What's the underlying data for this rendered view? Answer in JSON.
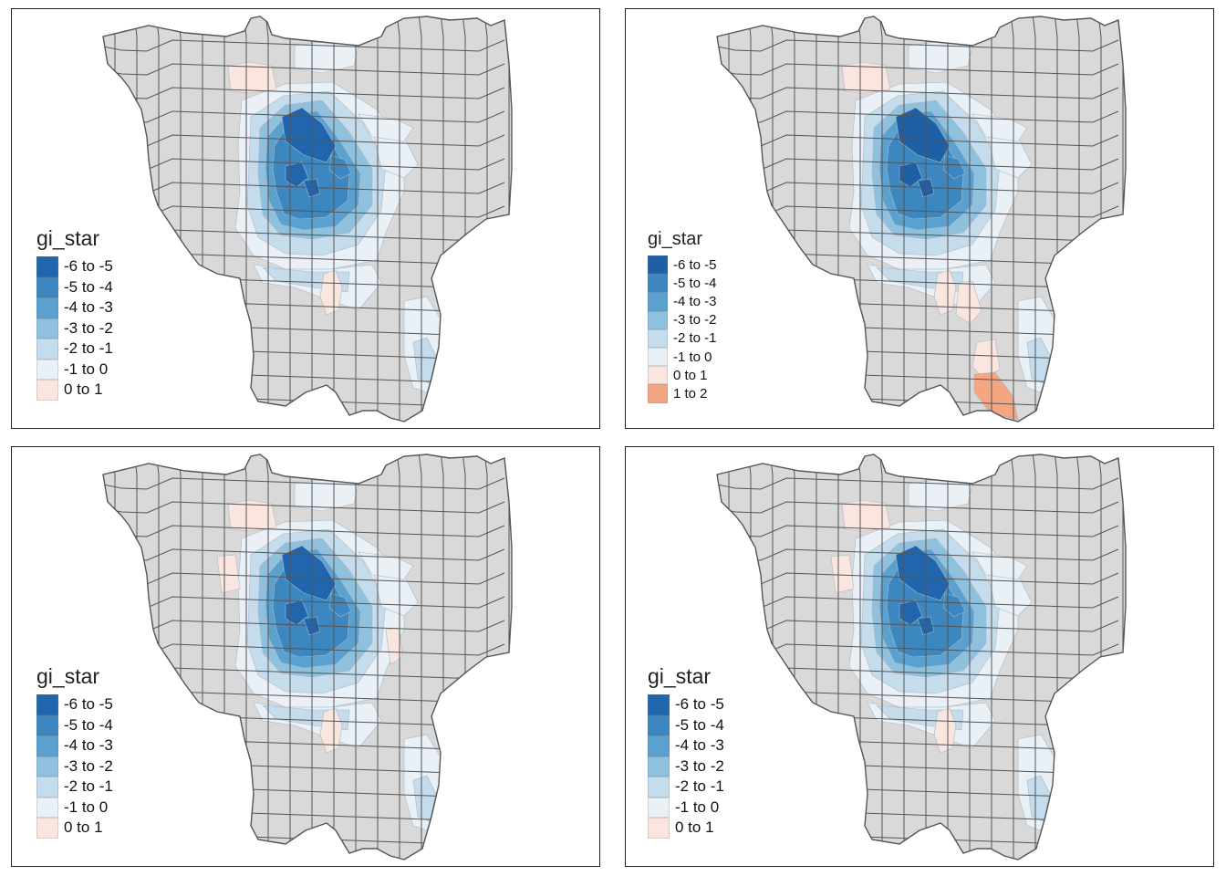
{
  "panels": [
    {
      "legend": {
        "title": "gi_star",
        "items": [
          {
            "label": "-6 to -5",
            "color": "#2166ac"
          },
          {
            "label": "-5 to -4",
            "color": "#3c87bf"
          },
          {
            "label": "-4 to -3",
            "color": "#5aa1cf"
          },
          {
            "label": "-3 to -2",
            "color": "#8fc1de"
          },
          {
            "label": "-2 to -1",
            "color": "#c5dcec"
          },
          {
            "label": "-1 to 0",
            "color": "#e9f0f6"
          },
          {
            "label": "0 to 1",
            "color": "#fbe6df"
          }
        ]
      },
      "hotspots": [
        "north-west-tract",
        "south-central-tract"
      ]
    },
    {
      "legend": {
        "title": "gi_star",
        "items": [
          {
            "label": "-6 to -5",
            "color": "#1f5fa5"
          },
          {
            "label": "-5 to -4",
            "color": "#3c87bf"
          },
          {
            "label": "-4 to -3",
            "color": "#5aa1cf"
          },
          {
            "label": "-3 to -2",
            "color": "#8fc1de"
          },
          {
            "label": "-2 to -1",
            "color": "#c5dcec"
          },
          {
            "label": "-1 to 0",
            "color": "#e9f0f6"
          },
          {
            "label": "0 to 1",
            "color": "#fbe6df"
          },
          {
            "label": "1 to 2",
            "color": "#f4a582"
          }
        ]
      },
      "hotspots": [
        "north-west-tract",
        "south-central-tract",
        "south-east-tract",
        "far-south-tract"
      ]
    },
    {
      "legend": {
        "title": "gi_star",
        "items": [
          {
            "label": "-6 to -5",
            "color": "#2166ac"
          },
          {
            "label": "-5 to -4",
            "color": "#3c87bf"
          },
          {
            "label": "-4 to -3",
            "color": "#5aa1cf"
          },
          {
            "label": "-3 to -2",
            "color": "#8fc1de"
          },
          {
            "label": "-2 to -1",
            "color": "#c5dcec"
          },
          {
            "label": "-1 to 0",
            "color": "#e9f0f6"
          },
          {
            "label": "0 to 1",
            "color": "#fbe6df"
          }
        ]
      },
      "hotspots": [
        "north-west-tract",
        "west-tract",
        "east-tract",
        "south-central-tract"
      ]
    },
    {
      "legend": {
        "title": "gi_star",
        "items": [
          {
            "label": "-6 to -5",
            "color": "#2166ac"
          },
          {
            "label": "-5 to -4",
            "color": "#3c87bf"
          },
          {
            "label": "-4 to -3",
            "color": "#5aa1cf"
          },
          {
            "label": "-3 to -2",
            "color": "#8fc1de"
          },
          {
            "label": "-2 to -1",
            "color": "#c5dcec"
          },
          {
            "label": "-1 to 0",
            "color": "#e9f0f6"
          },
          {
            "label": "0 to 1",
            "color": "#fbe6df"
          }
        ]
      },
      "hotspots": [
        "north-west-tract",
        "west-tract",
        "south-central-tract"
      ]
    }
  ],
  "colors": {
    "no_data": "#d9d9d9",
    "boundary": "#555555",
    "frame": "#222222"
  }
}
